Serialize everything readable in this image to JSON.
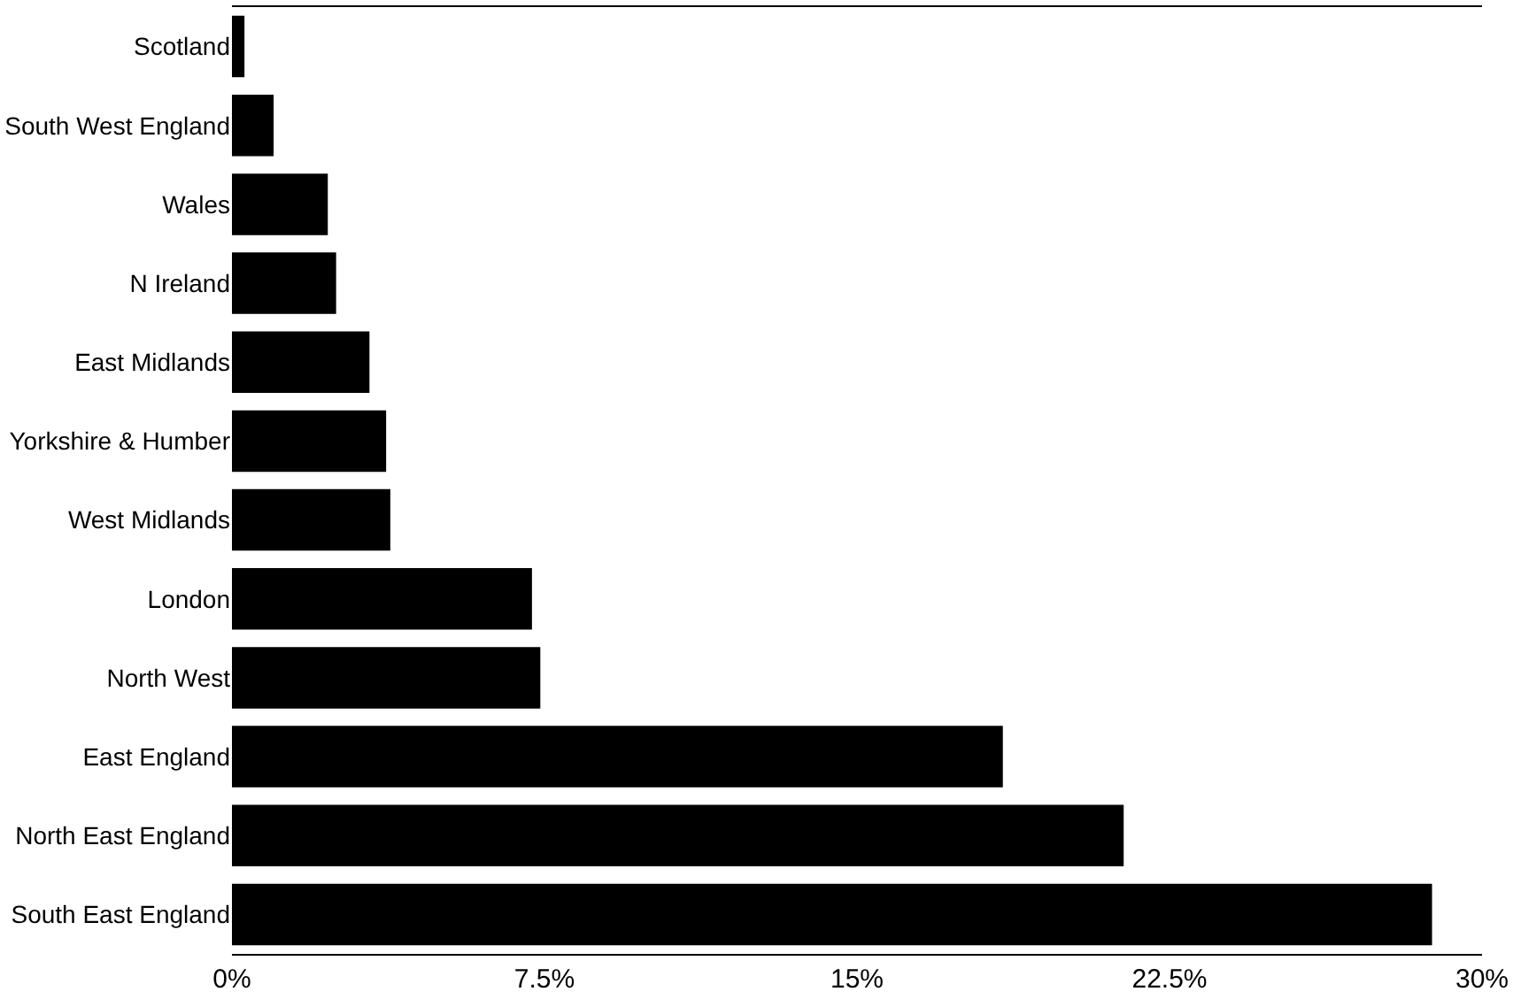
{
  "chart_data": {
    "type": "bar",
    "orientation": "horizontal",
    "categories": [
      "Scotland",
      "South West England",
      "Wales",
      "N Ireland",
      "East Midlands",
      "Yorkshire & Humber",
      "West Midlands",
      "London",
      "North West",
      "East England",
      "North East England",
      "South East England"
    ],
    "values": [
      0.3,
      1.0,
      2.3,
      2.5,
      3.3,
      3.7,
      3.8,
      7.2,
      7.4,
      18.5,
      21.4,
      28.8
    ],
    "color": "#000000",
    "xlim": [
      0,
      30
    ],
    "xticks": [
      {
        "value": 0,
        "label": "0%"
      },
      {
        "value": 7.5,
        "label": "7.5%"
      },
      {
        "value": 15,
        "label": "15%"
      },
      {
        "value": 22.5,
        "label": "22.5%"
      },
      {
        "value": 30,
        "label": "30%"
      }
    ],
    "grid": false,
    "legend": false
  }
}
